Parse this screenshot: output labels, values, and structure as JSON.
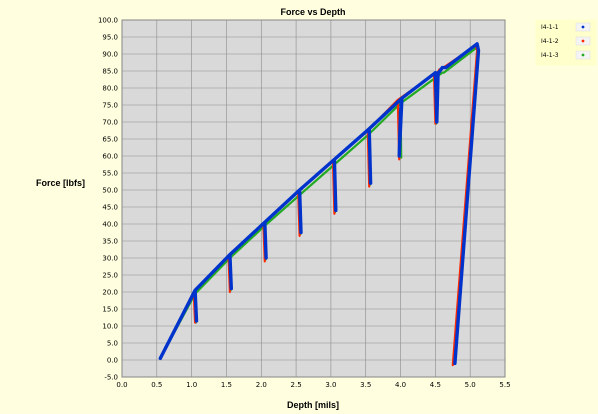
{
  "chart_data": {
    "type": "line",
    "title": "Force vs Depth",
    "xlabel": "Depth [mils]",
    "ylabel": "Force [lbfs]",
    "xlim": [
      0,
      5.5
    ],
    "ylim": [
      -5,
      100
    ],
    "x_ticks": [
      "0.0",
      "0.5",
      "1.0",
      "1.5",
      "2.0",
      "2.5",
      "3.0",
      "3.5",
      "4.0",
      "4.5",
      "5.0",
      "5.5"
    ],
    "y_ticks": [
      "-5.0",
      "0.0",
      "5.0",
      "10.0",
      "15.0",
      "20.0",
      "25.0",
      "30.0",
      "35.0",
      "40.0",
      "45.0",
      "50.0",
      "55.0",
      "60.0",
      "65.0",
      "70.0",
      "75.0",
      "80.0",
      "85.0",
      "90.0",
      "95.0",
      "100.0"
    ],
    "grid": true,
    "legend_position": "top-right",
    "series": [
      {
        "name": "I4-1-1",
        "color": "#0033cc",
        "x": [
          0.55,
          1.05,
          1.07,
          1.05,
          1.55,
          1.57,
          1.55,
          2.05,
          2.07,
          2.05,
          2.55,
          2.57,
          2.55,
          3.05,
          3.07,
          3.05,
          3.55,
          3.57,
          3.55,
          4.02,
          4.0,
          3.98,
          4.02,
          4.5,
          4.52,
          4.54,
          4.55,
          4.6,
          4.65,
          5.1,
          5.12,
          4.78
        ],
        "y": [
          0.5,
          20.5,
          11.5,
          20.5,
          31.0,
          21.0,
          31.0,
          40.5,
          30.0,
          40.5,
          50.0,
          37.5,
          50.0,
          59.0,
          44.0,
          59.0,
          68.0,
          52.0,
          68.0,
          77.0,
          73.0,
          60.0,
          77.0,
          84.5,
          70.0,
          84.5,
          84.5,
          86.0,
          86.0,
          93.0,
          91.0,
          -1.0
        ]
      },
      {
        "name": "I4-1-2",
        "color": "#ff2a00",
        "x": [
          0.55,
          1.03,
          1.05,
          1.03,
          1.53,
          1.55,
          1.53,
          2.03,
          2.05,
          2.03,
          2.53,
          2.55,
          2.53,
          3.03,
          3.05,
          3.03,
          3.53,
          3.55,
          3.53,
          3.96,
          3.98,
          3.96,
          4.48,
          4.5,
          4.52,
          4.56,
          4.58,
          5.08,
          5.1,
          4.75
        ],
        "y": [
          0.5,
          20.0,
          11.0,
          20.0,
          30.5,
          20.0,
          30.5,
          40.0,
          29.0,
          40.0,
          49.5,
          36.5,
          49.5,
          58.5,
          43.0,
          58.5,
          67.5,
          51.0,
          67.5,
          76.5,
          59.0,
          76.5,
          84.0,
          69.5,
          84.0,
          85.5,
          85.5,
          92.5,
          91.0,
          -1.5
        ]
      },
      {
        "name": "I4-1-3",
        "color": "#22aa22",
        "x": [
          0.55,
          1.05,
          1.06,
          1.05,
          1.55,
          1.56,
          1.55,
          2.05,
          2.06,
          2.05,
          2.55,
          2.56,
          2.55,
          3.05,
          3.06,
          3.05,
          3.55,
          3.56,
          3.55,
          4.0,
          4.01,
          4.0,
          4.5,
          4.51,
          4.5,
          4.6,
          4.62,
          5.1,
          5.12,
          4.77
        ],
        "y": [
          0.5,
          19.5,
          11.0,
          19.5,
          30.0,
          20.5,
          30.0,
          39.5,
          29.5,
          39.5,
          48.5,
          37.0,
          48.5,
          57.5,
          43.5,
          57.5,
          66.5,
          51.5,
          66.5,
          75.5,
          59.5,
          75.5,
          83.0,
          69.5,
          83.0,
          84.5,
          84.5,
          92.0,
          90.5,
          -1.0
        ]
      }
    ]
  }
}
